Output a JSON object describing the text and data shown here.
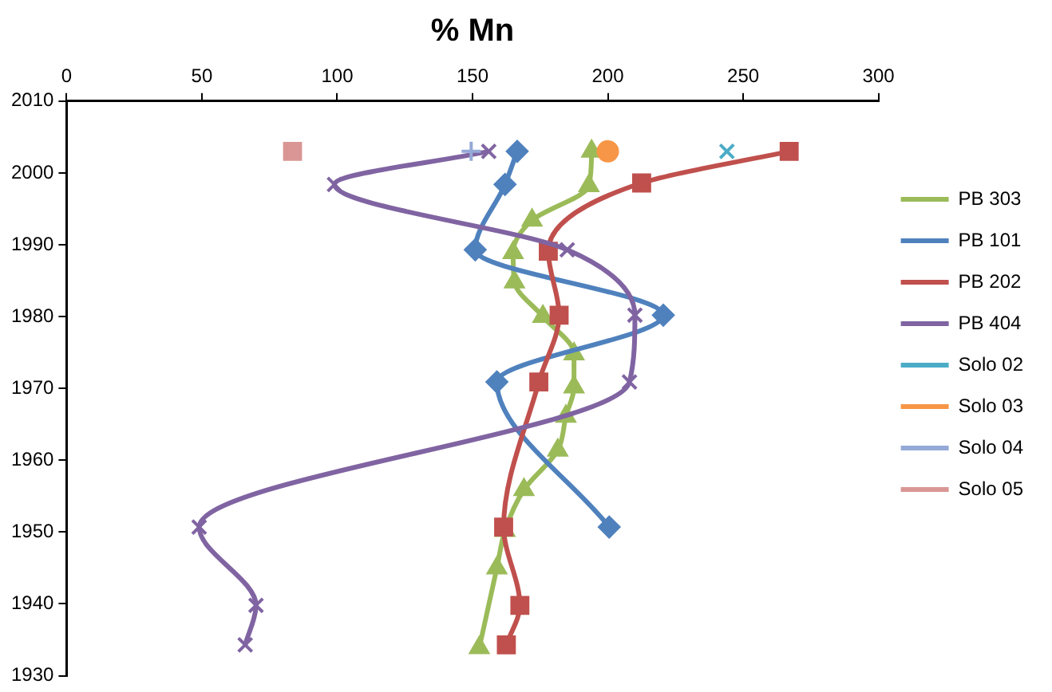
{
  "chart_data": {
    "type": "line",
    "xlabel": "% Mn",
    "xlim": [
      0,
      300
    ],
    "xticks": [
      0,
      50,
      100,
      150,
      200,
      250,
      300
    ],
    "ylim": [
      1930,
      2010
    ],
    "yticks": [
      1930,
      1940,
      1950,
      1960,
      1970,
      1980,
      1990,
      2000,
      2010
    ],
    "grid": false,
    "legend": "right",
    "series": [
      {
        "name": "PB 303",
        "color": "#9bbb59",
        "marker": "triangle",
        "x": [
          194,
          193,
          172,
          165,
          165.5,
          176,
          187.5,
          187.5,
          184.5,
          181.5,
          169,
          162,
          159,
          152.5
        ],
        "values": [
          2003,
          1998.2,
          1993.4,
          1988.9,
          1984.8,
          1980,
          1974.8,
          1970.2,
          1966.1,
          1961.4,
          1955.9,
          1950.2,
          1945,
          1933.9
        ]
      },
      {
        "name": "PB 101",
        "color": "#4f81bd",
        "marker": "diamond",
        "x": [
          166.5,
          162,
          151,
          220.5,
          159,
          200.5
        ],
        "values": [
          2003,
          1998.4,
          1989.3,
          1980.2,
          1970.9,
          1950.7
        ]
      },
      {
        "name": "PB 202",
        "color": "#c0504d",
        "marker": "square",
        "x": [
          267,
          212.5,
          178,
          182,
          174.5,
          161.5,
          167.5,
          162.5
        ],
        "values": [
          2003,
          1998.6,
          1989.1,
          1980.2,
          1970.9,
          1950.7,
          1939.8,
          1934.3
        ]
      },
      {
        "name": "PB 404",
        "color": "#8064a2",
        "marker": "cross",
        "x": [
          156,
          99,
          185,
          210,
          208,
          49,
          70,
          66
        ],
        "values": [
          2003,
          1998.4,
          1989.3,
          1980.2,
          1970.9,
          1950.7,
          1939.8,
          1934.3
        ]
      },
      {
        "name": "Solo 02",
        "color": "#4bacc6",
        "marker": "cross",
        "x": [
          244
        ],
        "values": [
          2003
        ]
      },
      {
        "name": "Solo 03",
        "color": "#f79646",
        "marker": "circle",
        "x": [
          200
        ],
        "values": [
          2003
        ]
      },
      {
        "name": "Solo 04",
        "color": "#95a9d7",
        "marker": "plus",
        "x": [
          149.5
        ],
        "values": [
          2003
        ]
      },
      {
        "name": "Solo 05",
        "color": "#d99694",
        "marker": "square",
        "x": [
          83.5
        ],
        "values": [
          2003
        ]
      }
    ]
  }
}
